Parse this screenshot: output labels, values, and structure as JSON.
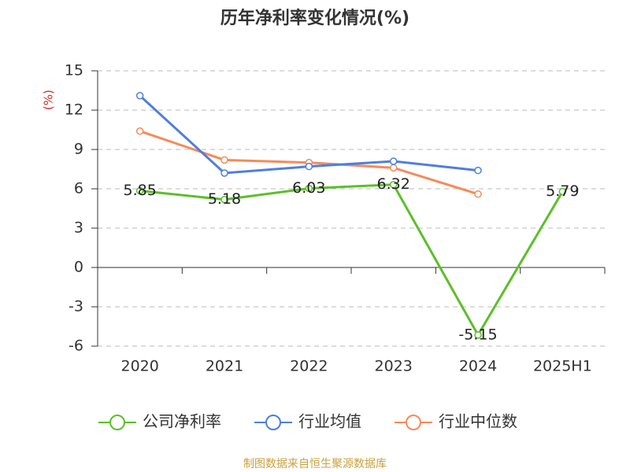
{
  "chart_data": {
    "type": "line",
    "title": "历年净利率变化情况(%)",
    "y_label": "(%)",
    "categories": [
      "2020",
      "2021",
      "2022",
      "2023",
      "2024",
      "2025H1"
    ],
    "series": [
      {
        "name": "公司净利率",
        "color": "#5cbf2a",
        "values": [
          5.85,
          5.18,
          6.03,
          6.32,
          -5.15,
          5.79
        ]
      },
      {
        "name": "行业均值",
        "color": "#4e7fdc",
        "values": [
          13.1,
          7.2,
          7.7,
          8.1,
          7.4,
          null
        ]
      },
      {
        "name": "行业中位数",
        "color": "#f58b5a",
        "values": [
          10.4,
          8.2,
          8.0,
          7.6,
          5.6,
          null
        ]
      }
    ],
    "ylim": [
      -6,
      15
    ],
    "yticks": [
      -6,
      -3,
      0,
      3,
      6,
      9,
      12,
      15
    ],
    "grid": true,
    "legend": "bottom",
    "source": "制图数据来自恒生聚源数据库"
  }
}
